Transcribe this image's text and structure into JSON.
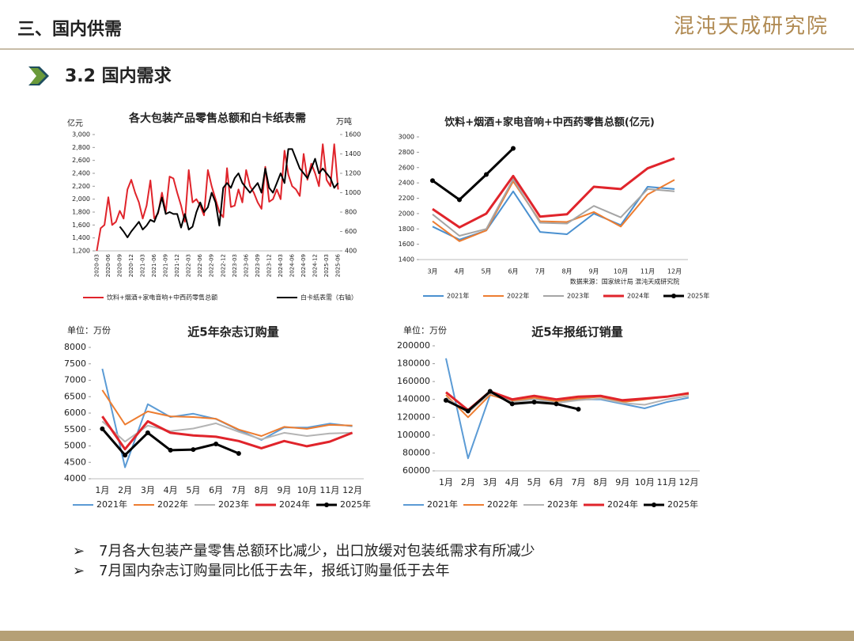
{
  "header": {
    "title": "三、国内供需",
    "logo": "混沌天成研究院",
    "section": "3.2 国内需求"
  },
  "chart_data": [
    {
      "type": "line",
      "title": "各大包装产品零售总额和白卡纸表需",
      "y_label": "亿元",
      "y2_label": "万吨",
      "categories": [
        "2020-03",
        null,
        null,
        "2020-06",
        null,
        null,
        "2020-09",
        null,
        null,
        "2020-12",
        null,
        null,
        "2021-03",
        null,
        null,
        "2021-06",
        null,
        null,
        "2021-09",
        null,
        null,
        "2021-12",
        null,
        null,
        "2022-03",
        null,
        null,
        "2022-06",
        null,
        null,
        "2022-09",
        null,
        null,
        "2022-12",
        null,
        null,
        "2023-03",
        null,
        null,
        "2023-06",
        null,
        null,
        "2023-09",
        null,
        null,
        "2023-12",
        null,
        null,
        "2024-03",
        null,
        null,
        "2024-06",
        null,
        null,
        "2024-09",
        null,
        null,
        "2024-12",
        null,
        null,
        "2025-03",
        null,
        null,
        "2025-06"
      ],
      "series": [
        {
          "name": "饮料+烟酒+家电音响+中西药零售总额",
          "color": "#e0242b",
          "values": [
            1200,
            1550,
            1600,
            2030,
            1600,
            1650,
            1820,
            1700,
            2150,
            2300,
            2100,
            1950,
            1700,
            1900,
            2290,
            1700,
            1780,
            2100,
            1800,
            2350,
            2320,
            2100,
            1900,
            1650,
            2450,
            1950,
            2000,
            1900,
            1750,
            2450,
            2200,
            2000,
            1800,
            1720,
            2480,
            1880,
            1900,
            2150,
            1950,
            2450,
            2200,
            2100,
            1950,
            1850,
            2500,
            1960,
            2000,
            2150,
            2000,
            2750,
            2380,
            2200,
            2150,
            2050,
            2700,
            2300,
            2550,
            2400,
            2200,
            2850,
            2300,
            2200,
            2850,
            2150
          ]
        },
        {
          "name": "白卡纸表需（右轴）",
          "color": "#000000",
          "axis": "y2",
          "values": [
            null,
            null,
            null,
            null,
            null,
            null,
            650,
            600,
            540,
            600,
            650,
            700,
            620,
            660,
            720,
            700,
            800,
            950,
            780,
            800,
            780,
            780,
            640,
            780,
            620,
            650,
            800,
            900,
            800,
            850,
            1000,
            900,
            660,
            1050,
            1100,
            1050,
            1150,
            1200,
            1100,
            1050,
            1000,
            1050,
            1100,
            1000,
            1250,
            1050,
            1000,
            1100,
            1200,
            1100,
            1450,
            1450,
            1350,
            1250,
            1200,
            1150,
            1250,
            1350,
            1200,
            1250,
            1200,
            1150,
            1050,
            1100
          ]
        }
      ],
      "ylim": [
        1200,
        3000
      ],
      "yticks": [
        {
          "value": 1200,
          "label": "1,200"
        },
        {
          "value": 1400,
          "label": "1,400"
        },
        {
          "value": 1600,
          "label": "1,600"
        },
        {
          "value": 1800,
          "label": "1,800"
        },
        {
          "value": 2000,
          "label": "2,000"
        },
        {
          "value": 2200,
          "label": "2,200"
        },
        {
          "value": 2400,
          "label": "2,400"
        },
        {
          "value": 2600,
          "label": "2,600"
        },
        {
          "value": 2800,
          "label": "2,800"
        },
        {
          "value": 3000,
          "label": "3,000"
        }
      ],
      "y2lim": [
        400,
        1600
      ],
      "y2ticks": [
        400,
        600,
        800,
        1000,
        1200,
        1400,
        1600
      ]
    },
    {
      "type": "line",
      "title": "饮料+烟酒+家电音响+中西药零售总额(亿元)",
      "source": "数据来源：国家统计局  混沌天成研究院",
      "categories": [
        "3月",
        "4月",
        "5月",
        "6月",
        "7月",
        "8月",
        "9月",
        "10月",
        "11月",
        "12月"
      ],
      "series": [
        {
          "name": "2021年",
          "color": "#4a90d0",
          "values": [
            1830,
            1660,
            1780,
            2290,
            1760,
            1730,
            2000,
            1850,
            2350,
            2320
          ]
        },
        {
          "name": "2022年",
          "color": "#ed7d31",
          "values": [
            1900,
            1640,
            1780,
            2420,
            1900,
            1890,
            2020,
            1830,
            2250,
            2440
          ]
        },
        {
          "name": "2023年",
          "color": "#a5a5a5",
          "values": [
            1990,
            1710,
            1800,
            2450,
            1880,
            1870,
            2100,
            1950,
            2320,
            2290
          ]
        },
        {
          "name": "2024年",
          "color": "#e0242b",
          "values": [
            2060,
            1820,
            2000,
            2490,
            1960,
            1990,
            2350,
            2320,
            2590,
            2720
          ]
        },
        {
          "name": "2025年",
          "color": "#000000",
          "marker": true,
          "values": [
            2430,
            2180,
            2510,
            2850,
            null,
            null,
            null,
            null,
            null,
            null
          ]
        }
      ],
      "ylim": [
        1400,
        3000
      ],
      "yticks": [
        1400,
        1600,
        1800,
        2000,
        2200,
        2400,
        2600,
        2800,
        3000
      ]
    },
    {
      "type": "line",
      "title": "近5年杂志订购量",
      "unit": "单位：万份",
      "categories": [
        "1月",
        "2月",
        "3月",
        "4月",
        "5月",
        "6月",
        "7月",
        "8月",
        "9月",
        "10月",
        "11月",
        "12月"
      ],
      "series": [
        {
          "name": "2021年",
          "color": "#5b9bd5",
          "values": [
            7350,
            4350,
            6270,
            5880,
            5980,
            5820,
            5480,
            5180,
            5560,
            5560,
            5680,
            5600
          ]
        },
        {
          "name": "2022年",
          "color": "#ed7d31",
          "values": [
            6700,
            5650,
            6050,
            5900,
            5880,
            5830,
            5500,
            5300,
            5580,
            5520,
            5640,
            5620
          ]
        },
        {
          "name": "2023年",
          "color": "#b4b4b4",
          "values": [
            5750,
            5130,
            5620,
            5450,
            5530,
            5690,
            5430,
            5200,
            5400,
            5300,
            5380,
            5400
          ]
        },
        {
          "name": "2024年",
          "color": "#e0242b",
          "values": [
            5900,
            4900,
            5750,
            5400,
            5320,
            5280,
            5150,
            4930,
            5150,
            4990,
            5130,
            5400
          ]
        },
        {
          "name": "2025年",
          "color": "#000000",
          "marker": true,
          "values": [
            5520,
            4720,
            5400,
            4870,
            4890,
            5060,
            4770,
            null,
            null,
            null,
            null,
            null
          ]
        }
      ],
      "ylim": [
        4000,
        8000
      ],
      "yticks": [
        4000,
        4500,
        5000,
        5500,
        6000,
        6500,
        7000,
        7500,
        8000
      ]
    },
    {
      "type": "line",
      "title": "近5年报纸订销量",
      "unit": "单位：万份",
      "categories": [
        "1月",
        "2月",
        "3月",
        "4月",
        "5月",
        "6月",
        "7月",
        "8月",
        "9月",
        "10月",
        "11月",
        "12月"
      ],
      "series": [
        {
          "name": "2021年",
          "color": "#5b9bd5",
          "values": [
            186000,
            74000,
            145000,
            140000,
            140000,
            138000,
            140000,
            140000,
            135000,
            130000,
            137000,
            142000
          ]
        },
        {
          "name": "2022年",
          "color": "#ed7d31",
          "values": [
            145000,
            120000,
            145000,
            138000,
            142000,
            138000,
            141000,
            143000,
            137000,
            140000,
            143000,
            146000
          ]
        },
        {
          "name": "2023年",
          "color": "#b4b4b4",
          "values": [
            142000,
            125000,
            147000,
            137000,
            140000,
            136000,
            139000,
            141000,
            136000,
            134000,
            140000,
            144000
          ]
        },
        {
          "name": "2024年",
          "color": "#e0242b",
          "values": [
            148000,
            128000,
            149000,
            140000,
            144000,
            140000,
            143000,
            144000,
            139000,
            141000,
            143000,
            147000
          ]
        },
        {
          "name": "2025年",
          "color": "#000000",
          "marker": true,
          "values": [
            139000,
            127000,
            149000,
            135000,
            137000,
            135000,
            129000,
            null,
            null,
            null,
            null,
            null
          ]
        }
      ],
      "ylim": [
        60000,
        200000
      ],
      "yticks": [
        60000,
        80000,
        100000,
        120000,
        140000,
        160000,
        180000,
        200000
      ]
    }
  ],
  "bullets": [
    "7月各大包装产量零售总额环比减少，出口放缓对包装纸需求有所减少",
    "7月国内杂志订购量同比低于去年，报纸订购量低于去年"
  ]
}
